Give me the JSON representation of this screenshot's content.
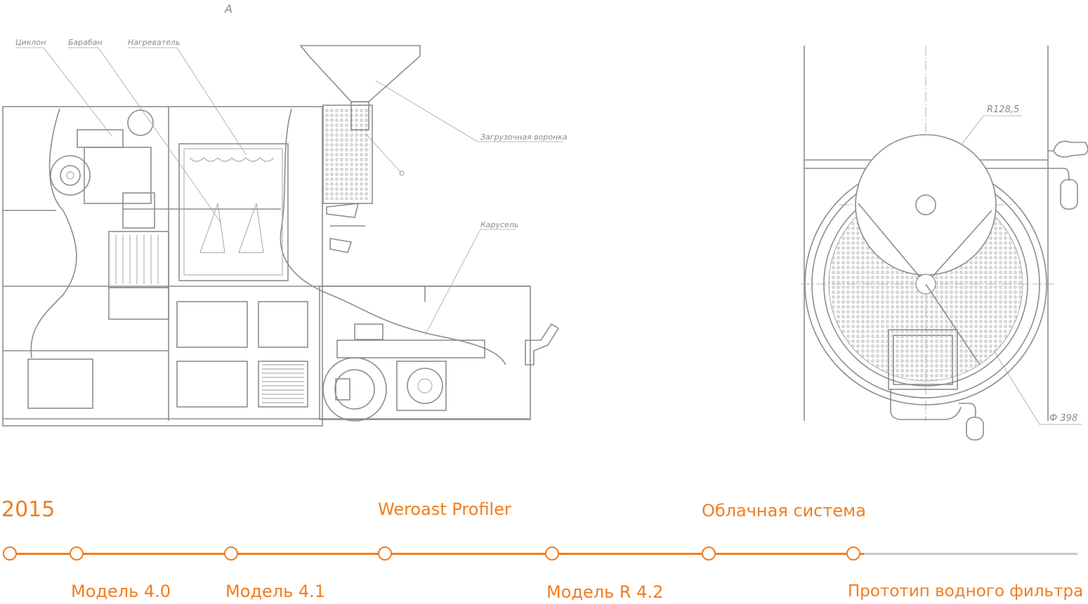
{
  "drawing": {
    "section_mark": "A",
    "callouts": {
      "cyclone": "Циклон",
      "drum": "Барабан",
      "heater": "Нагреватель",
      "hopper": "Загрузочная воронка",
      "carousel": "Карусель",
      "radius": "R128,5",
      "diameter": "Ф 398"
    }
  },
  "timeline": {
    "colors": {
      "accent": "#f07d1e",
      "inactive": "#c8c8c8",
      "line_art": "#8d8d8d"
    },
    "start_label": "2015",
    "top_labels": [
      "Weroast Profiler",
      "Облачная система"
    ],
    "bottom_labels": [
      "Модель 4.0",
      "Модель 4.1",
      "Модель R 4.2",
      "Прототип водного фильтра"
    ],
    "milestones": 7,
    "completed_fraction": 0.8
  }
}
